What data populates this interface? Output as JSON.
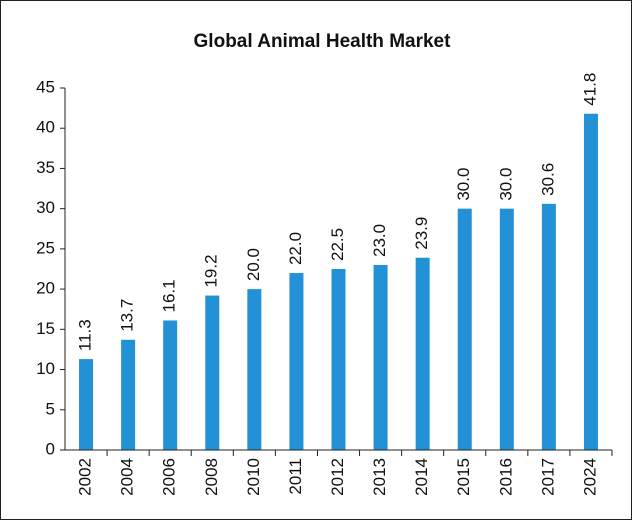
{
  "chart_data": {
    "type": "bar",
    "title": "Global Animal Health Market",
    "categories": [
      "2002",
      "2004",
      "2006",
      "2008",
      "2010",
      "2011",
      "2012",
      "2013",
      "2014",
      "2015",
      "2016",
      "2017",
      "2024"
    ],
    "values": [
      11.3,
      13.7,
      16.1,
      19.2,
      20.0,
      22.0,
      22.5,
      23.0,
      23.9,
      30.0,
      30.0,
      30.6,
      41.8
    ],
    "value_labels": [
      "11.3",
      "13.7",
      "16.1",
      "19.2",
      "20.0",
      "22.0",
      "22.5",
      "23.0",
      "23.9",
      "30.0",
      "30.0",
      "30.6",
      "41.8"
    ],
    "color": "#2391d6",
    "ylim": [
      0,
      45
    ],
    "yticks": [
      0,
      5,
      10,
      15,
      20,
      25,
      30,
      35,
      40,
      45
    ],
    "grid": false
  }
}
